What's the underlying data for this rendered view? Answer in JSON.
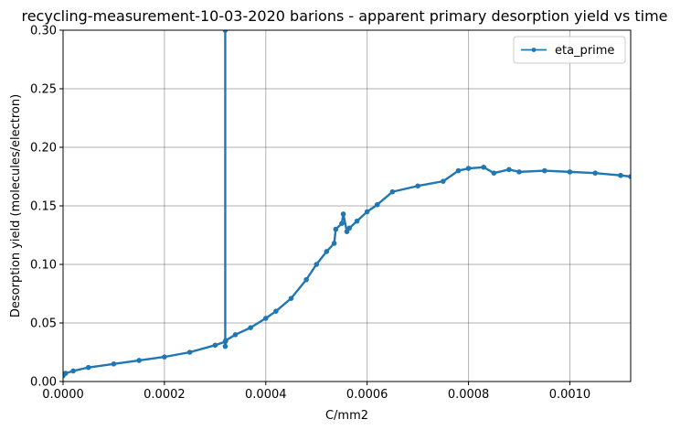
{
  "chart_data": {
    "type": "line",
    "title": "recycling-measurement-10-03-2020 barions - apparent primary desorption yield vs time",
    "xlabel": "C/mm2",
    "ylabel": "Desorption yield (molecules/electron)",
    "xlim": [
      0,
      0.00112
    ],
    "ylim": [
      0,
      0.3
    ],
    "x_ticks": [
      "0.0000",
      "0.0002",
      "0.0004",
      "0.0006",
      "0.0008",
      "0.0010"
    ],
    "x_tick_values": [
      0,
      0.0002,
      0.0004,
      0.0006,
      0.0008,
      0.001
    ],
    "y_ticks": [
      "0.00",
      "0.05",
      "0.10",
      "0.15",
      "0.20",
      "0.25",
      "0.30"
    ],
    "y_tick_values": [
      0,
      0.05,
      0.1,
      0.15,
      0.2,
      0.25,
      0.3
    ],
    "grid": true,
    "legend_position": "top-right",
    "series": [
      {
        "name": "eta_prime",
        "color": "#1f77b4",
        "marker": "point",
        "x": [
          0,
          5e-06,
          2e-05,
          5e-05,
          0.0001,
          0.00015,
          0.0002,
          0.00025,
          0.0003,
          0.00032,
          0.00032,
          0.00032,
          0.000321,
          0.00034,
          0.00037,
          0.0004,
          0.00042,
          0.00045,
          0.00048,
          0.0005,
          0.00052,
          0.000535,
          0.000538,
          0.00055,
          0.000553,
          0.00056,
          0.000565,
          0.00058,
          0.0006,
          0.00062,
          0.00065,
          0.0007,
          0.00075,
          0.00078,
          0.0008,
          0.00083,
          0.00085,
          0.00088,
          0.0009,
          0.00095,
          0.001,
          0.00105,
          0.0011,
          0.00112
        ],
        "y": [
          0.005,
          0.007,
          0.009,
          0.012,
          0.015,
          0.018,
          0.021,
          0.025,
          0.031,
          0.034,
          0.3,
          0.03,
          0.035,
          0.04,
          0.046,
          0.054,
          0.06,
          0.071,
          0.087,
          0.1,
          0.111,
          0.118,
          0.13,
          0.135,
          0.143,
          0.128,
          0.131,
          0.137,
          0.145,
          0.151,
          0.162,
          0.167,
          0.171,
          0.18,
          0.182,
          0.183,
          0.178,
          0.181,
          0.179,
          0.18,
          0.179,
          0.178,
          0.176,
          0.175
        ]
      }
    ]
  }
}
